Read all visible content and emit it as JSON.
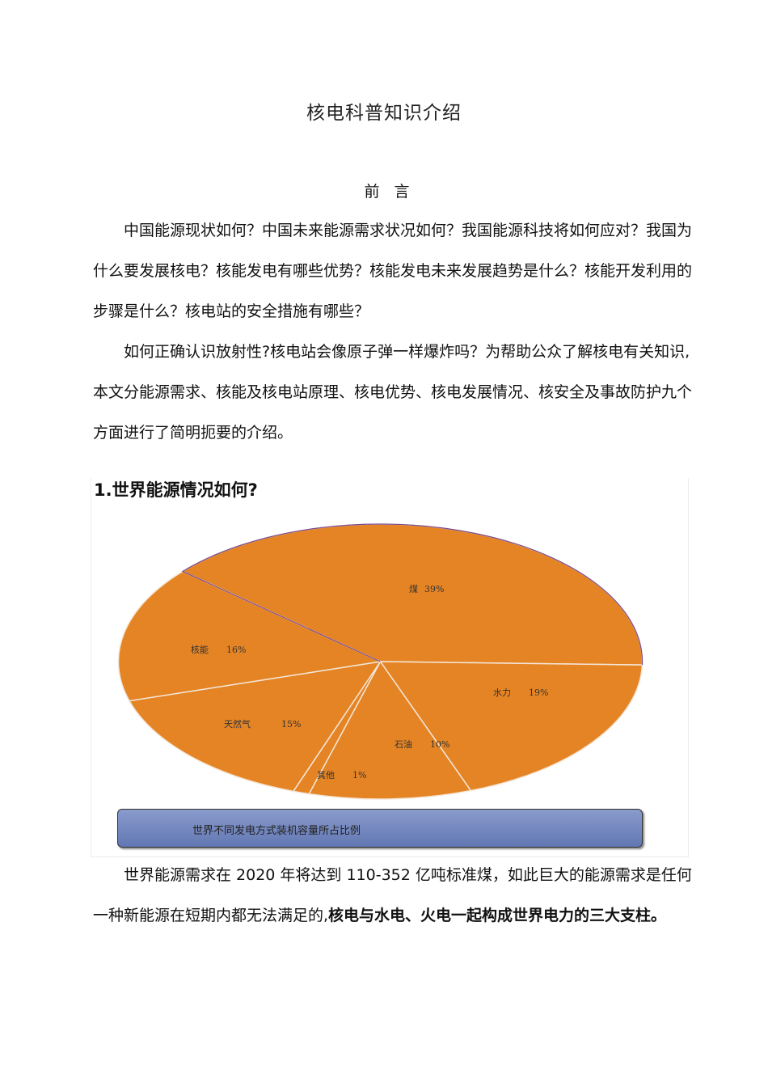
{
  "document": {
    "title": "核电科普知识介绍",
    "preface_heading": "前 言",
    "paragraph_1": "中国能源现状如何？中国未来能源需求状况如何？我国能源科技将如何应对？我国为什么要发展核电？核能发电有哪些优势？核能发电未来发展趋势是什么？核能开发利用的步骤是什么？核电站的安全措施有哪些？",
    "paragraph_2": "如何正确认识放射性?核电站会像原子弹一样爆炸吗？为帮助公众了解核电有关知识,本文分能源需求、核能及核电站原理、核电优势、核电发展情况、核安全及事故防护九个方面进行了简明扼要的介绍。",
    "section_1_heading": "1.世界能源情况如何?",
    "paragraph_3_normal": "世界能源需求在 2020 年将达到 110-352 亿吨标准煤，如此巨大的能源需求是任何一种新能源在短期内都无法满足的,",
    "paragraph_3_bold": "核电与水电、火电一起构成世界电力的三大支柱。"
  },
  "chart_data": {
    "type": "pie",
    "title": "世界不同发电方式装机容量所占比例",
    "slices": [
      {
        "label": "煤",
        "value": 39,
        "value_label": "39%"
      },
      {
        "label": "水力",
        "value": 19,
        "value_label": "19%"
      },
      {
        "label": "石油",
        "value": 10,
        "value_label": "10%"
      },
      {
        "label": "其他",
        "value": 1,
        "value_label": "1%"
      },
      {
        "label": "天然气",
        "value": 15,
        "value_label": "15%"
      },
      {
        "label": "核能",
        "value": 16,
        "value_label": "16%"
      }
    ],
    "slice_color": "#E58424",
    "separator_color": "#F3E6D8",
    "outline_color": "#7A4A8C",
    "caption_color": "#7286BF",
    "legend": "none"
  }
}
